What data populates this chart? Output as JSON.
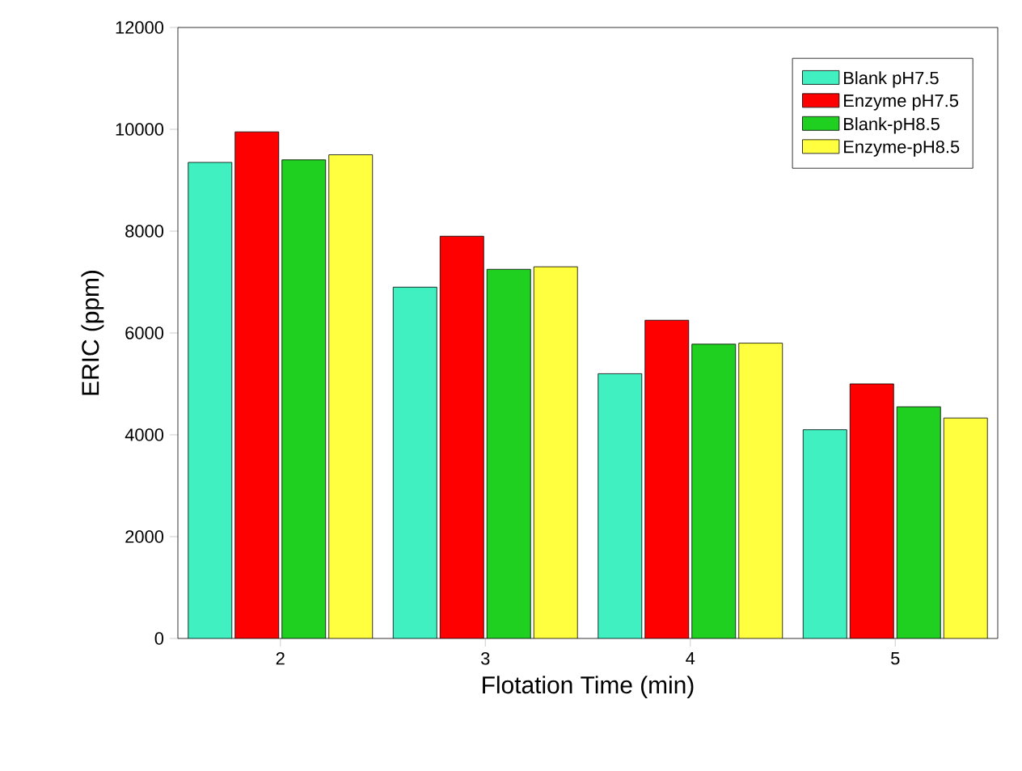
{
  "chart_data": {
    "type": "bar",
    "xlabel": "Flotation Time (min)",
    "ylabel": "ERIC (ppm)",
    "categories": [
      "2",
      "3",
      "4",
      "5"
    ],
    "series": [
      {
        "name": "Blank pH7.5",
        "color": "#40f0c0",
        "values": [
          9350,
          6900,
          5200,
          4100
        ]
      },
      {
        "name": "Enzyme pH7.5",
        "color": "#ff0000",
        "values": [
          9950,
          7900,
          6250,
          5000
        ]
      },
      {
        "name": "Blank-pH8.5",
        "color": "#20d020",
        "values": [
          9400,
          7250,
          5780,
          4550
        ]
      },
      {
        "name": "Enzyme-pH8.5",
        "color": "#ffff40",
        "values": [
          9500,
          7300,
          5800,
          4330
        ]
      }
    ],
    "ylim": [
      0,
      12000
    ],
    "yticks": [
      0,
      2000,
      4000,
      6000,
      8000,
      10000,
      12000
    ],
    "legend": "top right",
    "grid": false
  }
}
